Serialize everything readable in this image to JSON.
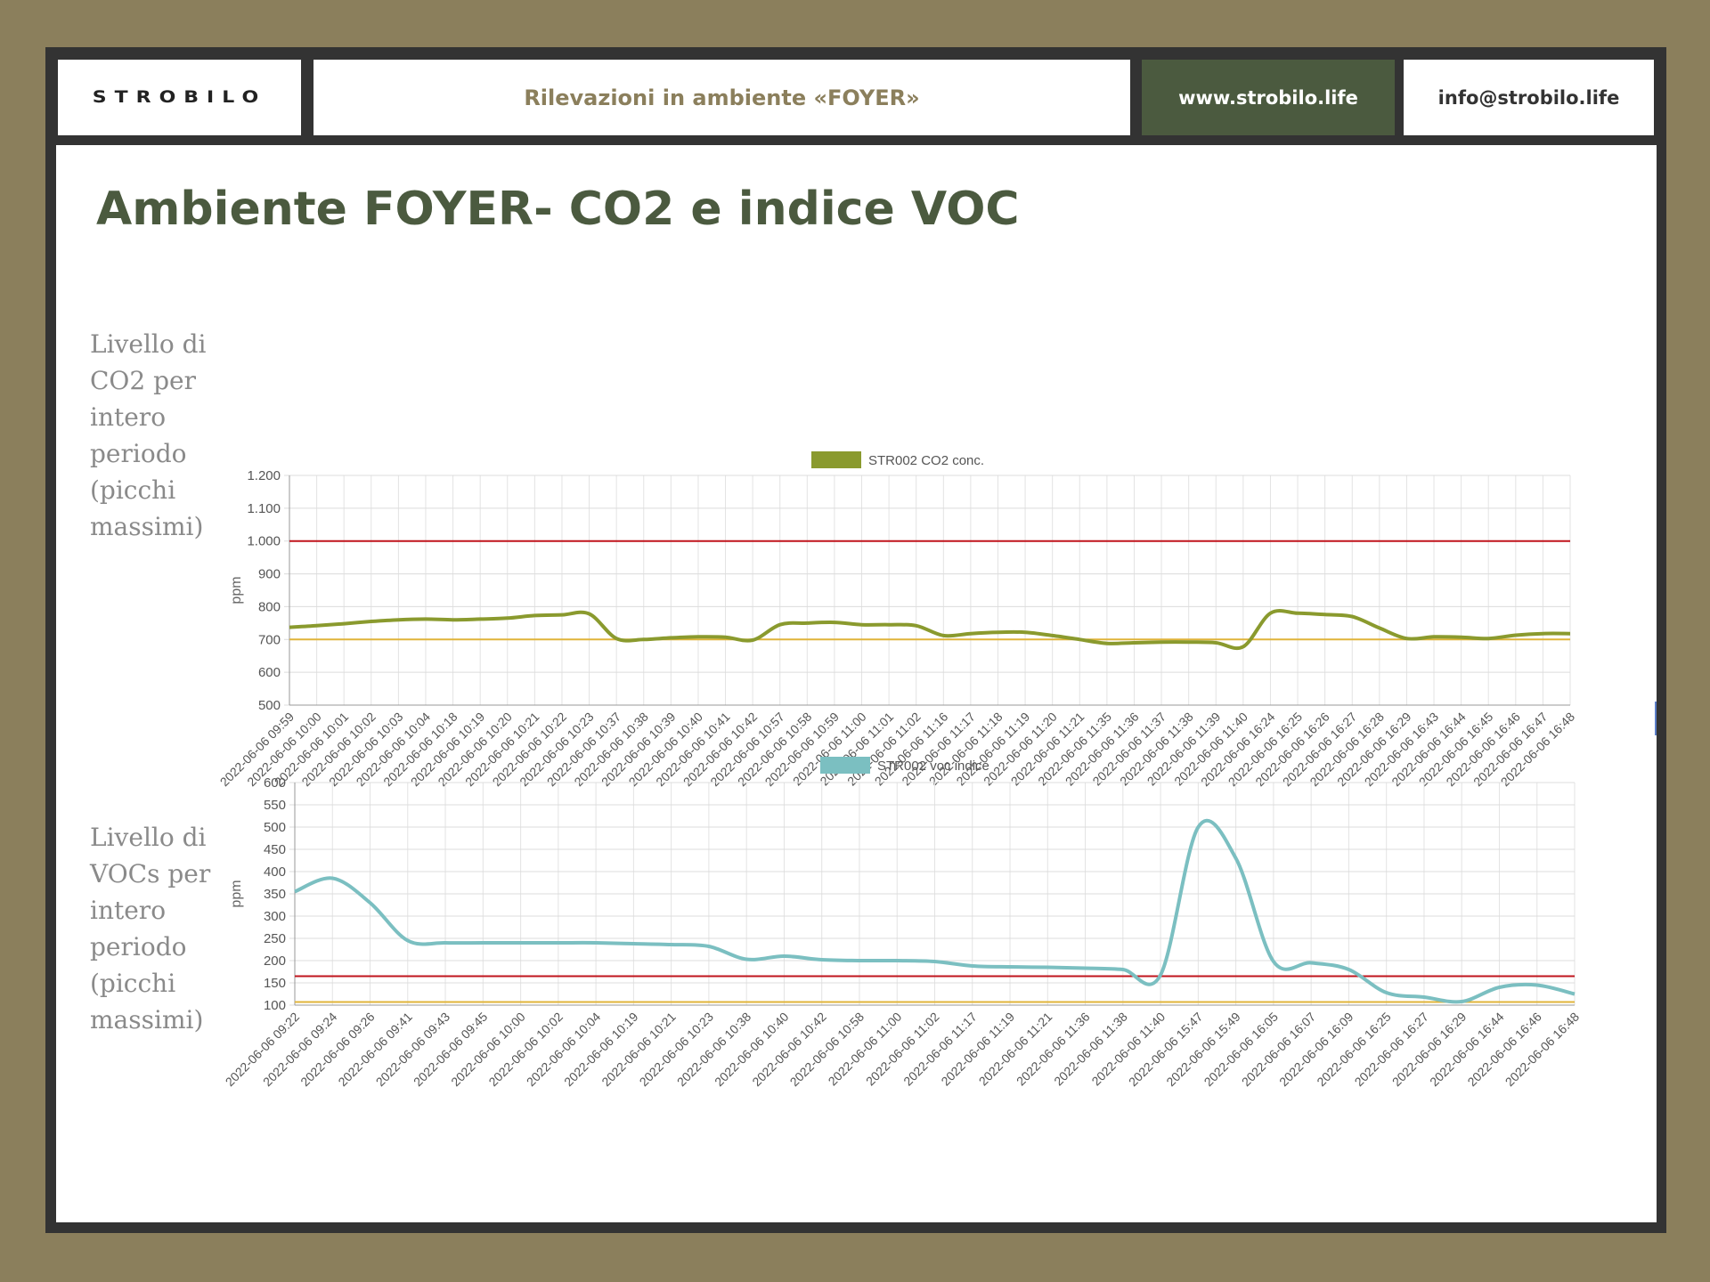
{
  "header": {
    "logo_text": "STROBILO",
    "title": "Rilevazioni in ambiente «FOYER»",
    "website": "www.strobilo.life",
    "email": "info@strobilo.life"
  },
  "page": {
    "title": "Ambiente FOYER- CO2 e indice VOC",
    "co2_side_label": [
      "Livello di",
      "CO2 per",
      "intero",
      "periodo",
      "(picchi",
      "massimi)"
    ],
    "voc_side_label": [
      "Livello di",
      "VOCs per",
      "intero",
      "periodo",
      "(picchi",
      "massimi)"
    ]
  },
  "colors": {
    "background": "#8b7f5c",
    "frame": "#333333",
    "brand_green": "#4b5a3f",
    "co2_series": "#8a9a2e",
    "voc_series": "#7bbfc1",
    "upper_threshold": "#c0141c",
    "lower_threshold": "#e0b43a"
  },
  "chart_data": [
    {
      "type": "line",
      "legend": "top-center",
      "grid": true,
      "ylabel": "ppm",
      "xlabel": "",
      "ylim": [
        500,
        1200
      ],
      "yticks": [
        500,
        600,
        700,
        800,
        900,
        1000,
        1100,
        1200
      ],
      "ytick_labels": [
        "500",
        "600",
        "700",
        "800",
        "900",
        "1.000",
        "1.100",
        "1.200"
      ],
      "categories": [
        "2022-06-06 09:59",
        "2022-06-06 10:00",
        "2022-06-06 10:01",
        "2022-06-06 10:02",
        "2022-06-06 10:03",
        "2022-06-06 10:04",
        "2022-06-06 10:18",
        "2022-06-06 10:19",
        "2022-06-06 10:20",
        "2022-06-06 10:21",
        "2022-06-06 10:22",
        "2022-06-06 10:23",
        "2022-06-06 10:37",
        "2022-06-06 10:38",
        "2022-06-06 10:39",
        "2022-06-06 10:40",
        "2022-06-06 10:41",
        "2022-06-06 10:42",
        "2022-06-06 10:57",
        "2022-06-06 10:58",
        "2022-06-06 10:59",
        "2022-06-06 11:00",
        "2022-06-06 11:01",
        "2022-06-06 11:02",
        "2022-06-06 11:16",
        "2022-06-06 11:17",
        "2022-06-06 11:18",
        "2022-06-06 11:19",
        "2022-06-06 11:20",
        "2022-06-06 11:21",
        "2022-06-06 11:35",
        "2022-06-06 11:36",
        "2022-06-06 11:37",
        "2022-06-06 11:38",
        "2022-06-06 11:39",
        "2022-06-06 11:40",
        "2022-06-06 16:24",
        "2022-06-06 16:25",
        "2022-06-06 16:26",
        "2022-06-06 16:27",
        "2022-06-06 16:28",
        "2022-06-06 16:29",
        "2022-06-06 16:43",
        "2022-06-06 16:44",
        "2022-06-06 16:45",
        "2022-06-06 16:46",
        "2022-06-06 16:47",
        "2022-06-06 16:48"
      ],
      "series": [
        {
          "name": "STR002 CO2 conc.",
          "values": [
            737,
            742,
            748,
            755,
            760,
            762,
            760,
            762,
            765,
            773,
            775,
            778,
            703,
            700,
            705,
            708,
            707,
            698,
            745,
            750,
            752,
            745,
            745,
            742,
            712,
            718,
            722,
            722,
            712,
            700,
            688,
            690,
            692,
            692,
            690,
            678,
            780,
            780,
            776,
            770,
            735,
            703,
            708,
            707,
            703,
            713,
            718,
            718
          ]
        }
      ],
      "thresholds": [
        1000,
        700
      ]
    },
    {
      "type": "line",
      "legend": "top-center",
      "grid": true,
      "ylabel": "ppm",
      "xlabel": "",
      "ylim": [
        100,
        600
      ],
      "yticks": [
        100,
        150,
        200,
        250,
        300,
        350,
        400,
        450,
        500,
        550,
        600
      ],
      "ytick_labels": [
        "100",
        "150",
        "200",
        "250",
        "300",
        "350",
        "400",
        "450",
        "500",
        "550",
        "600"
      ],
      "categories": [
        "2022-06-06 09:22",
        "2022-06-06 09:24",
        "2022-06-06 09:26",
        "2022-06-06 09:41",
        "2022-06-06 09:43",
        "2022-06-06 09:45",
        "2022-06-06 10:00",
        "2022-06-06 10:02",
        "2022-06-06 10:04",
        "2022-06-06 10:19",
        "2022-06-06 10:21",
        "2022-06-06 10:23",
        "2022-06-06 10:38",
        "2022-06-06 10:40",
        "2022-06-06 10:42",
        "2022-06-06 10:58",
        "2022-06-06 11:00",
        "2022-06-06 11:02",
        "2022-06-06 11:17",
        "2022-06-06 11:19",
        "2022-06-06 11:21",
        "2022-06-06 11:36",
        "2022-06-06 11:38",
        "2022-06-06 11:40",
        "2022-06-06 15:47",
        "2022-06-06 15:49",
        "2022-06-06 16:05",
        "2022-06-06 16:07",
        "2022-06-06 16:09",
        "2022-06-06 16:25",
        "2022-06-06 16:27",
        "2022-06-06 16:29",
        "2022-06-06 16:44",
        "2022-06-06 16:46",
        "2022-06-06 16:48"
      ],
      "series": [
        {
          "name": "STR002 voc indice",
          "values": [
            355,
            385,
            330,
            245,
            240,
            240,
            240,
            240,
            240,
            238,
            236,
            232,
            203,
            210,
            202,
            200,
            200,
            198,
            188,
            186,
            185,
            183,
            180,
            168,
            500,
            430,
            198,
            195,
            180,
            128,
            118,
            108,
            140,
            145,
            125
          ]
        }
      ],
      "thresholds": [
        165,
        107
      ]
    }
  ]
}
